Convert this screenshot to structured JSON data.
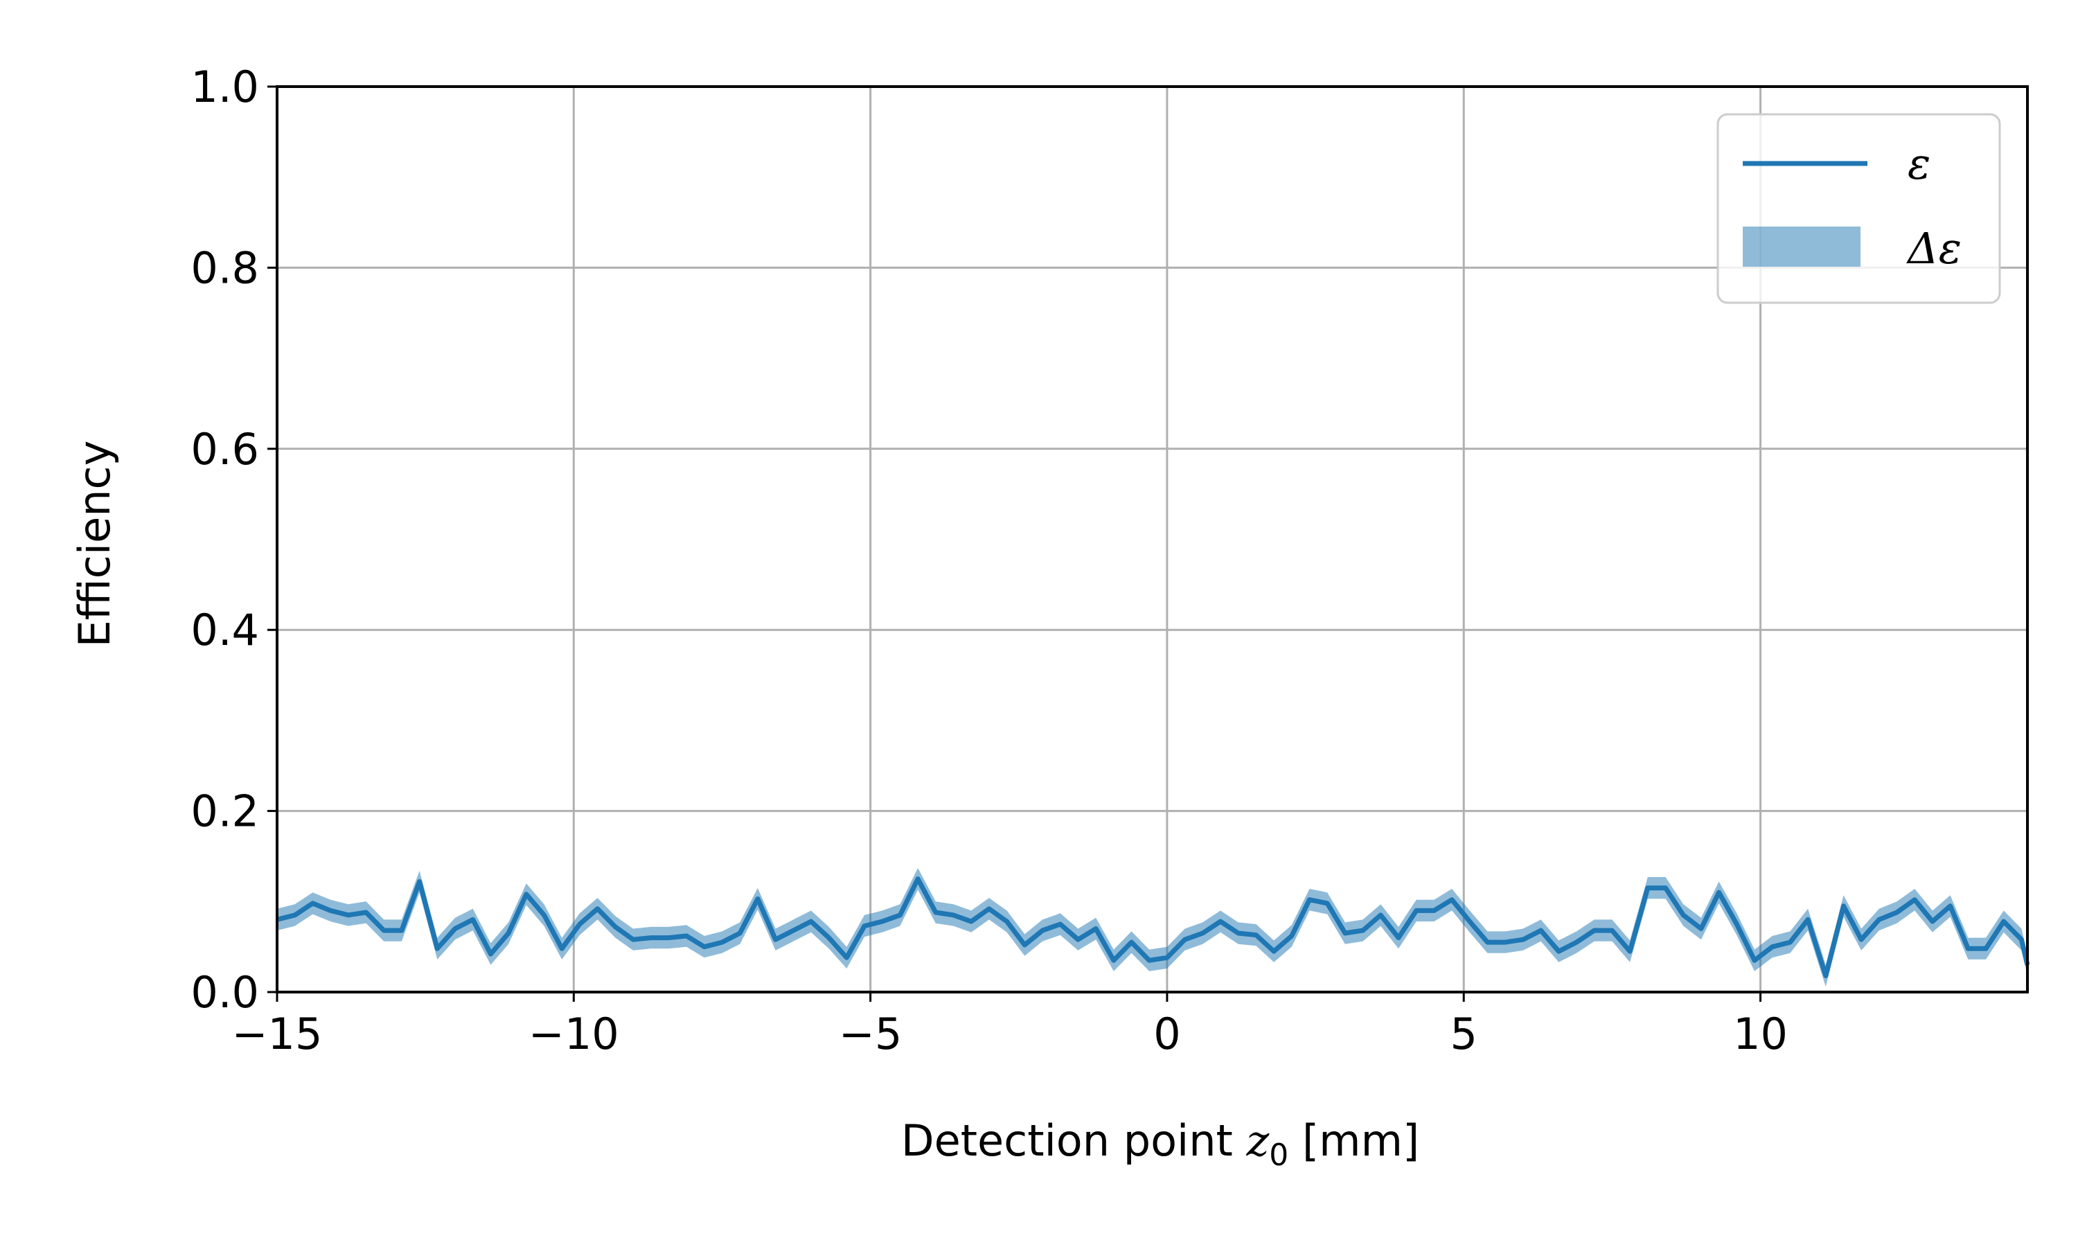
{
  "chart_data": {
    "type": "line",
    "title": "",
    "xlabel": "Detection point",
    "xlabel_var": "z",
    "xlabel_sub": "0",
    "xlabel_unit": "[mm]",
    "ylabel": "Efficiency",
    "xlim": [
      -15,
      14.5
    ],
    "ylim": [
      0.0,
      1.0
    ],
    "xticks": [
      -15,
      -10,
      -5,
      0,
      5,
      10
    ],
    "xtick_labels": [
      "−15",
      "−10",
      "−5",
      "0",
      "5",
      "10"
    ],
    "yticks": [
      0.0,
      0.2,
      0.4,
      0.6,
      0.8,
      1.0
    ],
    "ytick_labels": [
      "0.0",
      "0.2",
      "0.4",
      "0.6",
      "0.8",
      "1.0"
    ],
    "grid": true,
    "legend_position": "top-right",
    "colors": {
      "line": "#1f77b4",
      "band": "#1f77b4",
      "grid": "#b0b0b0"
    },
    "series": [
      {
        "name": "ε",
        "kind": "line"
      },
      {
        "name": "Δε",
        "kind": "band"
      }
    ],
    "x": [
      -15.0,
      -14.7,
      -14.4,
      -14.1,
      -13.8,
      -13.5,
      -13.2,
      -12.9,
      -12.6,
      -12.3,
      -12.0,
      -11.7,
      -11.4,
      -11.1,
      -10.8,
      -10.5,
      -10.2,
      -9.9,
      -9.6,
      -9.3,
      -9.0,
      -8.7,
      -8.4,
      -8.1,
      -7.8,
      -7.5,
      -7.2,
      -6.9,
      -6.6,
      -6.3,
      -6.0,
      -5.7,
      -5.4,
      -5.1,
      -4.8,
      -4.5,
      -4.2,
      -3.9,
      -3.6,
      -3.3,
      -3.0,
      -2.7,
      -2.4,
      -2.1,
      -1.8,
      -1.5,
      -1.2,
      -0.9,
      -0.6,
      -0.3,
      0.0,
      0.3,
      0.6,
      0.9,
      1.2,
      1.5,
      1.8,
      2.1,
      2.4,
      2.7,
      3.0,
      3.3,
      3.6,
      3.9,
      4.2,
      4.5,
      4.8,
      5.1,
      5.4,
      5.7,
      6.0,
      6.3,
      6.6,
      6.9,
      7.2,
      7.5,
      7.8,
      8.1,
      8.4,
      8.7,
      9.0,
      9.3,
      9.6,
      9.9,
      10.2,
      10.5,
      10.8,
      11.1,
      11.4,
      11.7,
      12.0,
      12.3,
      12.6,
      12.9,
      13.2,
      13.5,
      13.8,
      14.1,
      14.4
    ],
    "y": [
      0.08,
      0.085,
      0.098,
      0.09,
      0.085,
      0.088,
      0.068,
      0.068,
      0.122,
      0.048,
      0.07,
      0.08,
      0.042,
      0.065,
      0.108,
      0.085,
      0.048,
      0.075,
      0.092,
      0.072,
      0.058,
      0.06,
      0.06,
      0.062,
      0.05,
      0.055,
      0.065,
      0.103,
      0.058,
      0.068,
      0.078,
      0.06,
      0.038,
      0.073,
      0.078,
      0.085,
      0.125,
      0.088,
      0.085,
      0.078,
      0.092,
      0.078,
      0.052,
      0.068,
      0.075,
      0.058,
      0.07,
      0.035,
      0.055,
      0.035,
      0.038,
      0.058,
      0.065,
      0.078,
      0.065,
      0.063,
      0.045,
      0.062,
      0.102,
      0.098,
      0.065,
      0.068,
      0.085,
      0.06,
      0.09,
      0.09,
      0.102,
      0.078,
      0.055,
      0.055,
      0.058,
      0.068,
      0.045,
      0.055,
      0.068,
      0.068,
      0.045,
      0.115,
      0.115,
      0.085,
      0.07,
      0.11,
      0.075,
      0.035,
      0.05,
      0.055,
      0.08,
      0.018,
      0.095,
      0.058,
      0.08,
      0.088,
      0.102,
      0.078,
      0.095,
      0.048,
      0.048,
      0.078,
      0.058
    ],
    "x_end": 14.5,
    "y_end": 0.03,
    "band_halfwidth": 0.012
  }
}
